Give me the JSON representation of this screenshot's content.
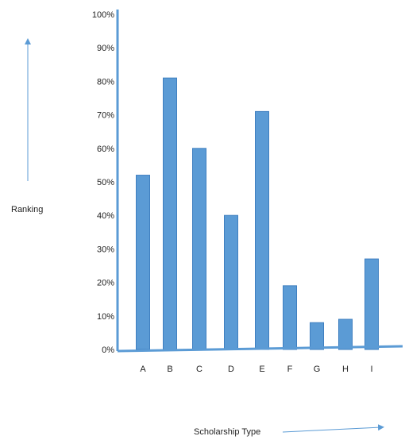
{
  "colors": {
    "bar_fill": "#5b9bd5",
    "bar_stroke": "#3f7fc0",
    "axis": "#5b9bd5",
    "text": "#222222"
  },
  "chart_data": {
    "type": "bar",
    "title": "",
    "xlabel": "Scholarship Type",
    "ylabel": "Ranking",
    "categories": [
      "A",
      "B",
      "C",
      "D",
      "E",
      "F",
      "G",
      "H",
      "I"
    ],
    "series": [
      {
        "values": [
          52,
          81,
          60,
          40,
          71,
          19,
          8,
          9,
          27
        ]
      }
    ],
    "ylim": [
      0,
      100
    ],
    "yticks": [
      0,
      10,
      20,
      30,
      40,
      50,
      60,
      70,
      80,
      90,
      100
    ],
    "ytick_labels": [
      "0%",
      "10%",
      "20%",
      "30%",
      "40%",
      "50%",
      "60%",
      "70%",
      "80%",
      "90%",
      "100%"
    ],
    "grid": false,
    "legend": "none"
  }
}
